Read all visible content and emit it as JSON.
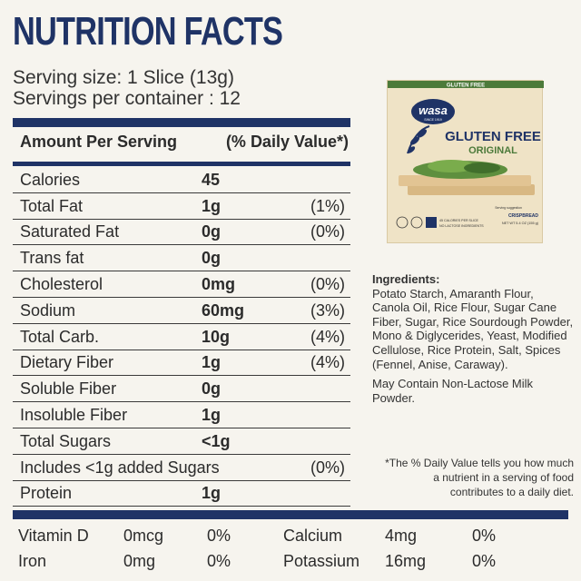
{
  "title": "NUTRITION FACTS",
  "serving_size": "Serving size: 1 Slice (13g)",
  "servings_per_container": "Servings per container : 12",
  "amount_header": "Amount Per Serving",
  "dv_header": "(% Daily Value*)",
  "nutrients": [
    {
      "name": "Calories",
      "amount": "45",
      "dv": ""
    },
    {
      "name": "Total Fat",
      "amount": "1g",
      "dv": "(1%)"
    },
    {
      "name": "Saturated Fat",
      "amount": "0g",
      "dv": "(0%)"
    },
    {
      "name": "Trans fat",
      "amount": "0g",
      "dv": ""
    },
    {
      "name": "Cholesterol",
      "amount": "0mg",
      "dv": "(0%)"
    },
    {
      "name": "Sodium",
      "amount": "60mg",
      "dv": "(3%)"
    },
    {
      "name": "Total Carb.",
      "amount": "10g",
      "dv": "(4%)"
    },
    {
      "name": "Dietary Fiber",
      "amount": "1g",
      "dv": "(4%)"
    },
    {
      "name": "Soluble Fiber",
      "amount": "0g",
      "dv": ""
    },
    {
      "name": "Insoluble Fiber",
      "amount": "1g",
      "dv": ""
    },
    {
      "name": "Total Sugars",
      "amount": "<1g",
      "dv": ""
    },
    {
      "name": "Includes <1g added Sugars",
      "amount": "",
      "dv": "(0%)"
    },
    {
      "name": "Protein",
      "amount": "1g",
      "dv": ""
    }
  ],
  "vitamins": [
    {
      "name": "Vitamin D",
      "amount": "0mcg",
      "dv": "0%"
    },
    {
      "name": "Calcium",
      "amount": "4mg",
      "dv": "0%"
    },
    {
      "name": "Iron",
      "amount": "0mg",
      "dv": "0%"
    },
    {
      "name": "Potassium",
      "amount": "16mg",
      "dv": "0%"
    }
  ],
  "product": {
    "brand": "wasa",
    "brand_sub": "SINCE 1919",
    "top_label": "GLUTEN FREE",
    "name": "GLUTEN FREE",
    "variant": "ORIGINAL",
    "product_type": "CRISPBREAD",
    "net_weight": "NET WT 5.4 OZ (155 g)",
    "claim_1": "45 CALORIES PER SLICE",
    "claim_2": "NO LACTOSE INGREDIENTS",
    "serving_suggestion": "Serving suggestion"
  },
  "ingredients_title": "Ingredients:",
  "ingredients_text": "Potato Starch, Amaranth Flour, Canola Oil, Rice Flour, Sugar Cane Fiber, Sugar, Rice Sourdough Powder, Mono & Diglycerides, Yeast, Modified Cellulose, Rice Protein, Salt, Spices (Fennel, Anise, Caraway).",
  "may_contain": "May Contain Non-Lactose Milk Powder.",
  "footnote": "*The % Daily Value tells you how much a nutrient in a serving of food contributes to a daily diet.",
  "colors": {
    "navy": "#1f3366",
    "background": "#f6f4ee",
    "box_cream": "#efe3c6",
    "box_green": "#4c7a3a"
  }
}
